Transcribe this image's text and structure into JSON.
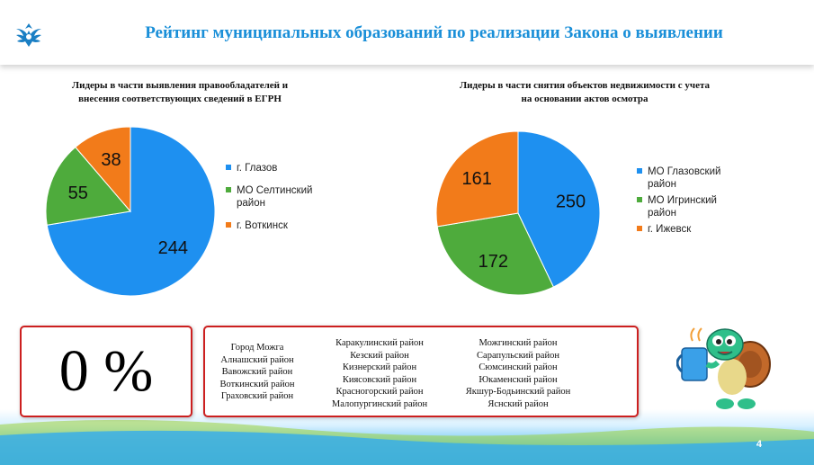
{
  "header": {
    "title": "Рейтинг муниципальных образований по реализации Закона о выявлении"
  },
  "left_chart": {
    "title_line1": "Лидеры в части выявления правообладателей  и",
    "title_line2": "внесения соответствующих  сведений в ЕГРН",
    "legend": [
      "г. Глазов",
      "МО Селтинский район",
      "г. Воткинск"
    ]
  },
  "right_chart": {
    "title_line1": "Лидеры в части снятия объектов недвижимости с учета",
    "title_line2": "на основании актов  осмотра",
    "legend": [
      "МО Глазовский район",
      "МО Игринский район",
      "г. Ижевск"
    ]
  },
  "chart_data": [
    {
      "type": "pie",
      "title": "Лидеры в части выявления правообладателей  и внесения соответствующих  сведений в ЕГРН",
      "categories": [
        "г. Глазов",
        "МО Селтинский район",
        "г. Воткинск"
      ],
      "values": [
        244,
        55,
        38
      ],
      "colors": [
        "#1e90f0",
        "#4eab3c",
        "#f27b1a"
      ],
      "legend_position": "right"
    },
    {
      "type": "pie",
      "title": "Лидеры в части снятия объектов недвижимости с учета на основании актов  осмотра",
      "categories": [
        "МО Глазовский район",
        "МО Игринский район",
        "г. Ижевск"
      ],
      "values": [
        250,
        172,
        161
      ],
      "colors": [
        "#1e90f0",
        "#4eab3c",
        "#f27b1a"
      ],
      "legend_position": "right"
    }
  ],
  "percent_box": {
    "value": "0 %"
  },
  "districts": {
    "col1": [
      "Город Можга",
      "Алнашский  район",
      "Вавожский  район",
      "Воткинский  район",
      "Граховский  район"
    ],
    "col2": [
      "Каракулинский  район",
      "Кезский  район",
      "Кизнерский  район",
      "Киясовский  район",
      "Красногорский район",
      "Малопургинский район"
    ],
    "col3": [
      "Можгинский  район",
      "Сарапульский  район",
      "Сюмсинский  район",
      "Юкаменский  район",
      "Якшур-Бодьинский  район",
      "Яснский  район"
    ]
  },
  "page_number": "4"
}
